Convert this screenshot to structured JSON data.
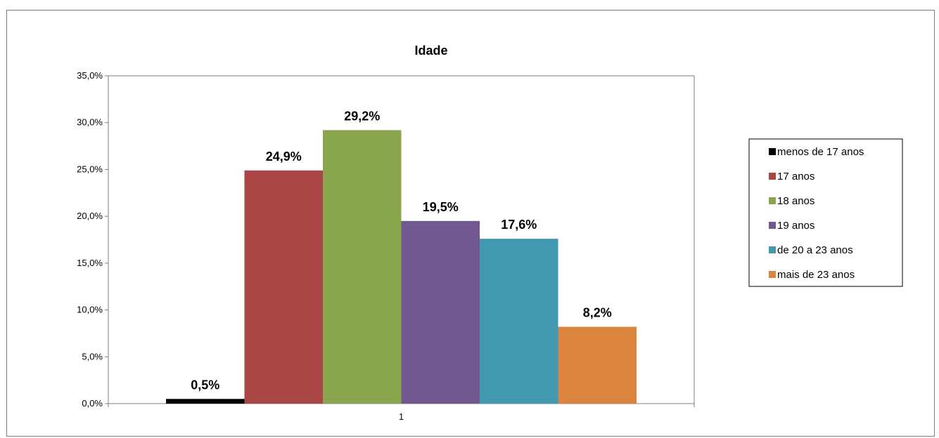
{
  "chart_data": {
    "type": "bar",
    "title": "Idade",
    "categories": [
      "1"
    ],
    "series": [
      {
        "name": "menos de 17 anos",
        "values": [
          0.5
        ],
        "label": "0,5%",
        "color": "#000000"
      },
      {
        "name": "17 anos",
        "values": [
          24.9
        ],
        "label": "24,9%",
        "color": "#AA4643"
      },
      {
        "name": "18 anos",
        "values": [
          29.2
        ],
        "label": "29,2%",
        "color": "#89A54E"
      },
      {
        "name": "19 anos",
        "values": [
          19.5
        ],
        "label": "19,5%",
        "color": "#71588F"
      },
      {
        "name": "de 20 a 23 anos",
        "values": [
          17.6
        ],
        "label": "17,6%",
        "color": "#4198AF"
      },
      {
        "name": "mais de 23 anos",
        "values": [
          8.2
        ],
        "label": "8,2%",
        "color": "#DB843D"
      }
    ],
    "ylim": [
      0,
      35
    ],
    "yticks": [
      "0,0%",
      "5,0%",
      "10,0%",
      "15,0%",
      "20,0%",
      "25,0%",
      "30,0%",
      "35,0%"
    ],
    "ytick_values": [
      0,
      5,
      10,
      15,
      20,
      25,
      30,
      35
    ],
    "xlabel": "",
    "ylabel": "",
    "grid": false,
    "legend_position": "right"
  }
}
